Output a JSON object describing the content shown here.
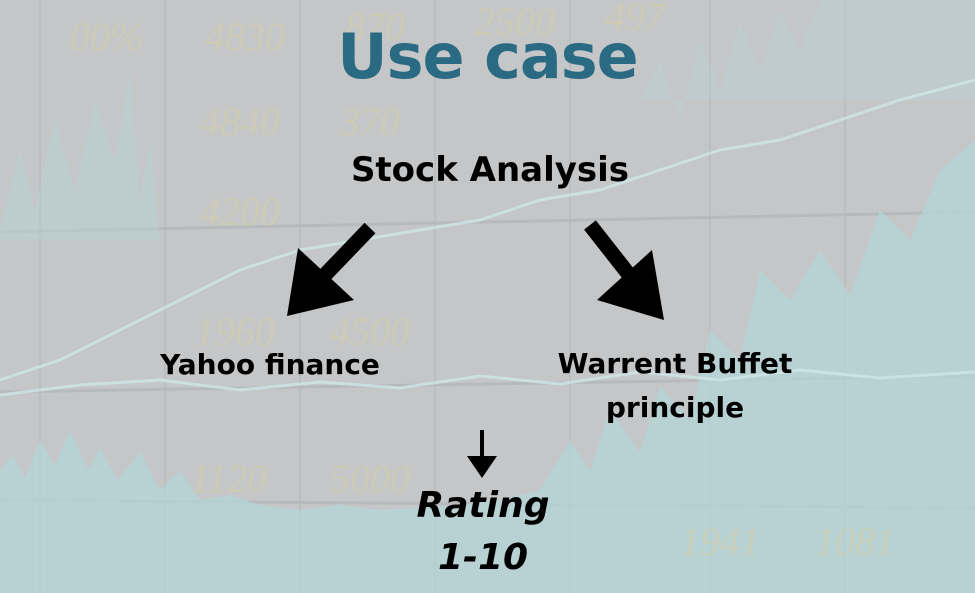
{
  "title": "Use case",
  "root": {
    "label": "Stock Analysis"
  },
  "branches": [
    {
      "label_lines": [
        "Yahoo finance"
      ]
    },
    {
      "label_lines": [
        "Warrent Buffet",
        "principle"
      ]
    }
  ],
  "result": {
    "label_lines": [
      "Rating",
      "1-10"
    ]
  },
  "colors": {
    "title": "#2a6a82",
    "text": "#000000",
    "arrow": "#000000",
    "background": "#c5c7c9",
    "chart_lines": "#a7d6d8"
  }
}
